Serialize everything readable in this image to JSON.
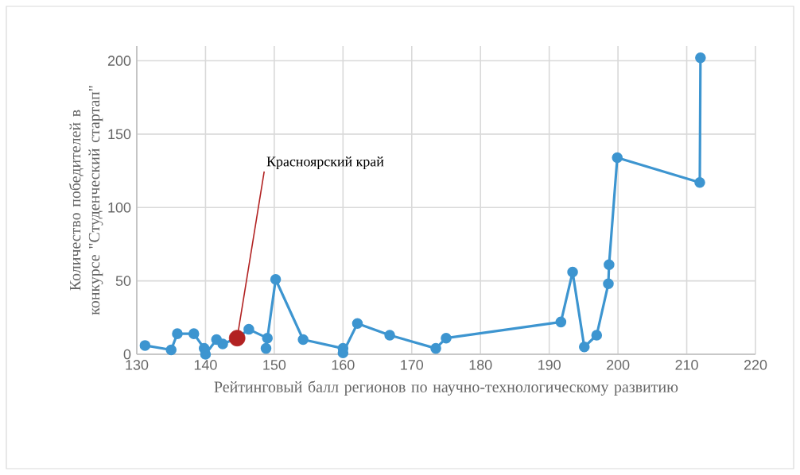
{
  "chart_data": {
    "type": "line",
    "xlabel": "Рейтинговый балл регионов по научно-технологическому развитию",
    "ylabel": "Количество победителей в конкурсе \"Студенческий стартап\"",
    "xlim": [
      130,
      220
    ],
    "ylim": [
      0,
      210
    ],
    "xticks": [
      130,
      140,
      150,
      160,
      170,
      180,
      190,
      200,
      210,
      220
    ],
    "yticks": [
      0,
      50,
      100,
      150,
      200
    ],
    "grid": true,
    "legend": false,
    "marker": "circle",
    "line_style": "solid",
    "series": [
      {
        "color": "#3d95d0",
        "x": [
          131.2,
          135,
          135.9,
          138.3,
          139.8,
          140,
          141.6,
          142.5,
          144.6,
          146.3,
          149,
          148.8,
          150.2,
          154.2,
          160,
          160,
          162.1,
          166.8,
          173.5,
          175,
          191.7,
          193.4,
          195.1,
          196.9,
          198.6,
          198.7,
          199.9,
          211.9,
          212
        ],
        "values": [
          6,
          3,
          14,
          14,
          4,
          0,
          10,
          7,
          11,
          17,
          11,
          4,
          51,
          10,
          4,
          1,
          21,
          13,
          4,
          11,
          22,
          56,
          5,
          13,
          48,
          61,
          134,
          117,
          202
        ]
      },
      {
        "type": "scatter",
        "color": "#b22222",
        "x": [
          144.6
        ],
        "values": [
          11
        ]
      }
    ],
    "annotations": [
      {
        "text": "Красноярский край",
        "x": 144.6,
        "y": 11
      }
    ]
  }
}
